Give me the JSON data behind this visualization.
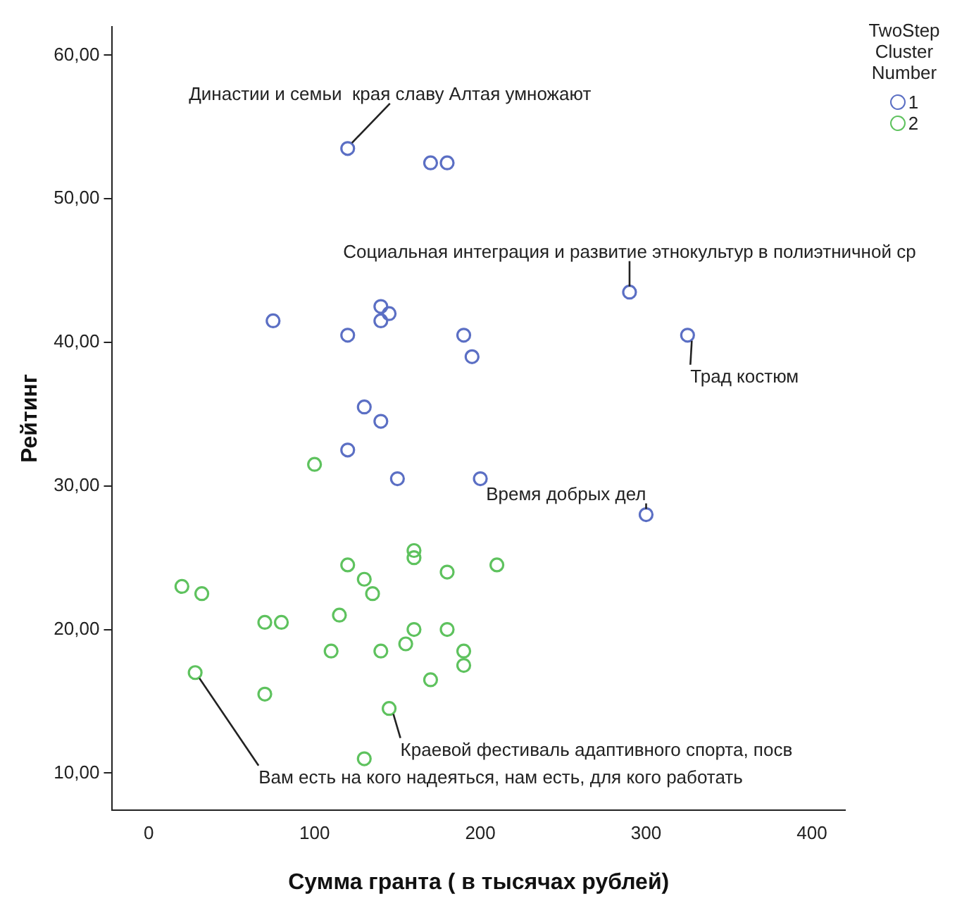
{
  "chart_data": {
    "type": "scatter",
    "xlabel": "Сумма гранта ( в тысячах рублей)",
    "ylabel": "Рейтинг",
    "legend_title": "TwoStep Cluster Number",
    "legend": "top right",
    "grid": false,
    "marker": "circle",
    "xlim": [
      -22,
      420
    ],
    "xticks": [
      0,
      100,
      200,
      300,
      400
    ],
    "ylim": [
      7.4,
      62
    ],
    "yticks": [
      {
        "value": 10,
        "label": "10,00"
      },
      {
        "value": 20,
        "label": "20,00"
      },
      {
        "value": 30,
        "label": "30,00"
      },
      {
        "value": 40,
        "label": "40,00"
      },
      {
        "value": 50,
        "label": "50,00"
      },
      {
        "value": 60,
        "label": "60,00"
      }
    ],
    "series": [
      {
        "name": "1",
        "color": "#5b6fc4",
        "x": [
          120,
          170,
          180,
          290,
          325,
          75,
          140,
          145,
          140,
          120,
          190,
          195,
          130,
          140,
          120,
          150,
          200,
          300
        ],
        "values": [
          53.5,
          52.5,
          52.5,
          43.5,
          40.5,
          41.5,
          42.5,
          42,
          41.5,
          40.5,
          40.5,
          39,
          35.5,
          34.5,
          32.5,
          30.5,
          30.5,
          28
        ]
      },
      {
        "name": "2",
        "color": "#5ec25e",
        "x": [
          100,
          160,
          160,
          120,
          210,
          180,
          130,
          20,
          32,
          135,
          115,
          70,
          80,
          160,
          180,
          155,
          110,
          140,
          190,
          190,
          28,
          170,
          70,
          145,
          130
        ],
        "values": [
          31.5,
          25.5,
          25,
          24.5,
          24.5,
          24,
          23.5,
          23,
          22.5,
          22.5,
          21,
          20.5,
          20.5,
          20,
          20,
          19,
          18.5,
          18.5,
          18.5,
          17.5,
          17,
          16.5,
          15.5,
          14.5,
          11
        ]
      }
    ],
    "annotations": [
      {
        "text": "Династии и семьи  края славу Алтая умножают",
        "x": 120,
        "y": 53.5
      },
      {
        "text": "Социальная интеграция и развитие этнокультур в полиэтничной ср",
        "x": 290,
        "y": 43.5
      },
      {
        "text": "Трад костюм",
        "x": 325,
        "y": 40.5
      },
      {
        "text": "Время добрых дел",
        "x": 300,
        "y": 28
      },
      {
        "text": "Краевой фестиваль адаптивного спорта, посв",
        "x": 145,
        "y": 14.5
      },
      {
        "text": "Вам есть на кого надеяться, нам есть, для кого работать",
        "x": 28,
        "y": 17
      }
    ]
  }
}
